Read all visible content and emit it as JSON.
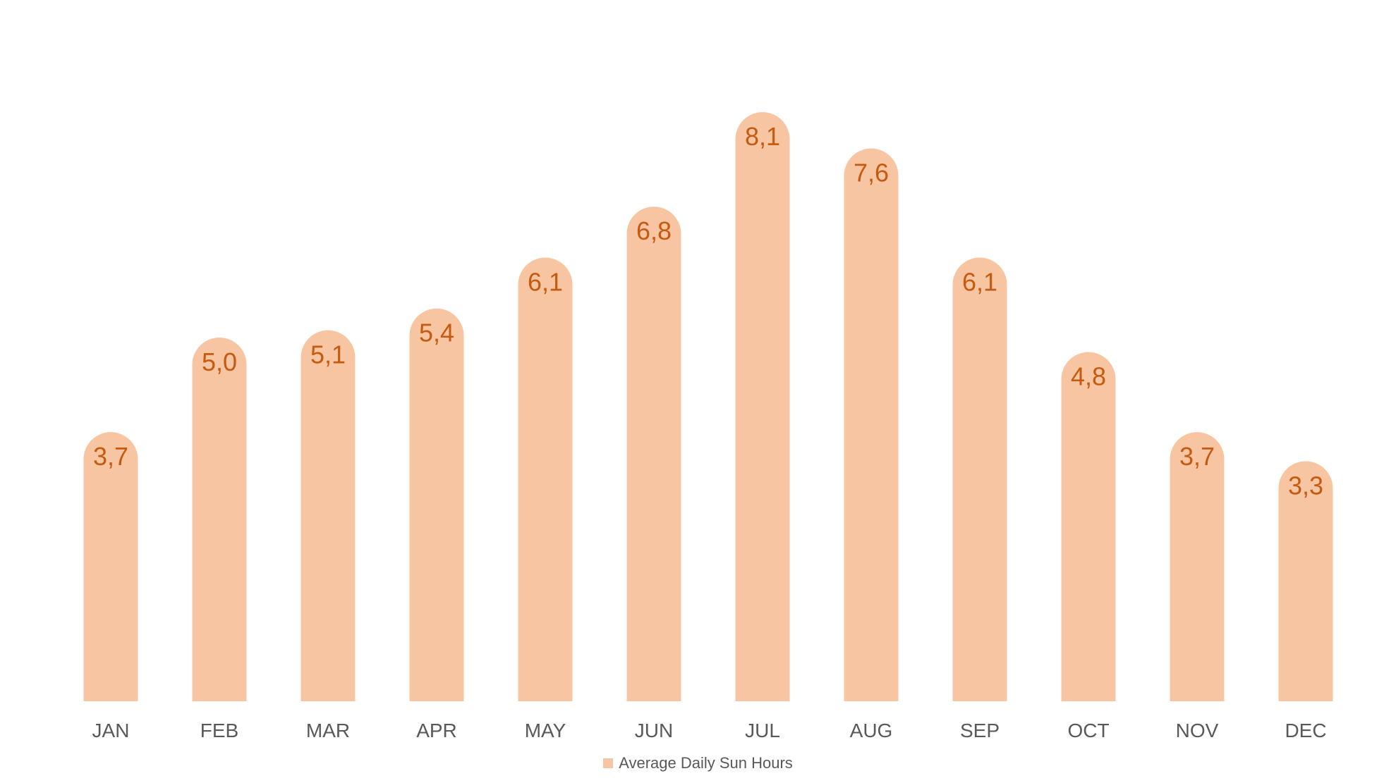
{
  "chart_data": {
    "type": "bar",
    "title": "",
    "xlabel": "",
    "ylabel": "",
    "categories": [
      "JAN",
      "FEB",
      "MAR",
      "APR",
      "MAY",
      "JUN",
      "JUL",
      "AUG",
      "SEP",
      "OCT",
      "NOV",
      "DEC"
    ],
    "series": [
      {
        "name": "Average Daily Sun Hours",
        "values": [
          3.7,
          5.0,
          5.1,
          5.4,
          6.1,
          6.8,
          8.1,
          7.6,
          6.1,
          4.8,
          3.7,
          3.3
        ],
        "labels": [
          "3,7",
          "5,0",
          "5,1",
          "5,4",
          "6,1",
          "6,8",
          "8,1",
          "7,6",
          "6,1",
          "4,8",
          "3,7",
          "3,3"
        ]
      }
    ],
    "ylim": [
      0,
      8.6
    ],
    "grid": false,
    "axes_visible": false,
    "bar_shape": "rounded-top",
    "legend_position": "bottom",
    "colors": {
      "bar": "#F8C5A2",
      "data_label": "#C55A11",
      "tick_label": "#595959"
    }
  }
}
